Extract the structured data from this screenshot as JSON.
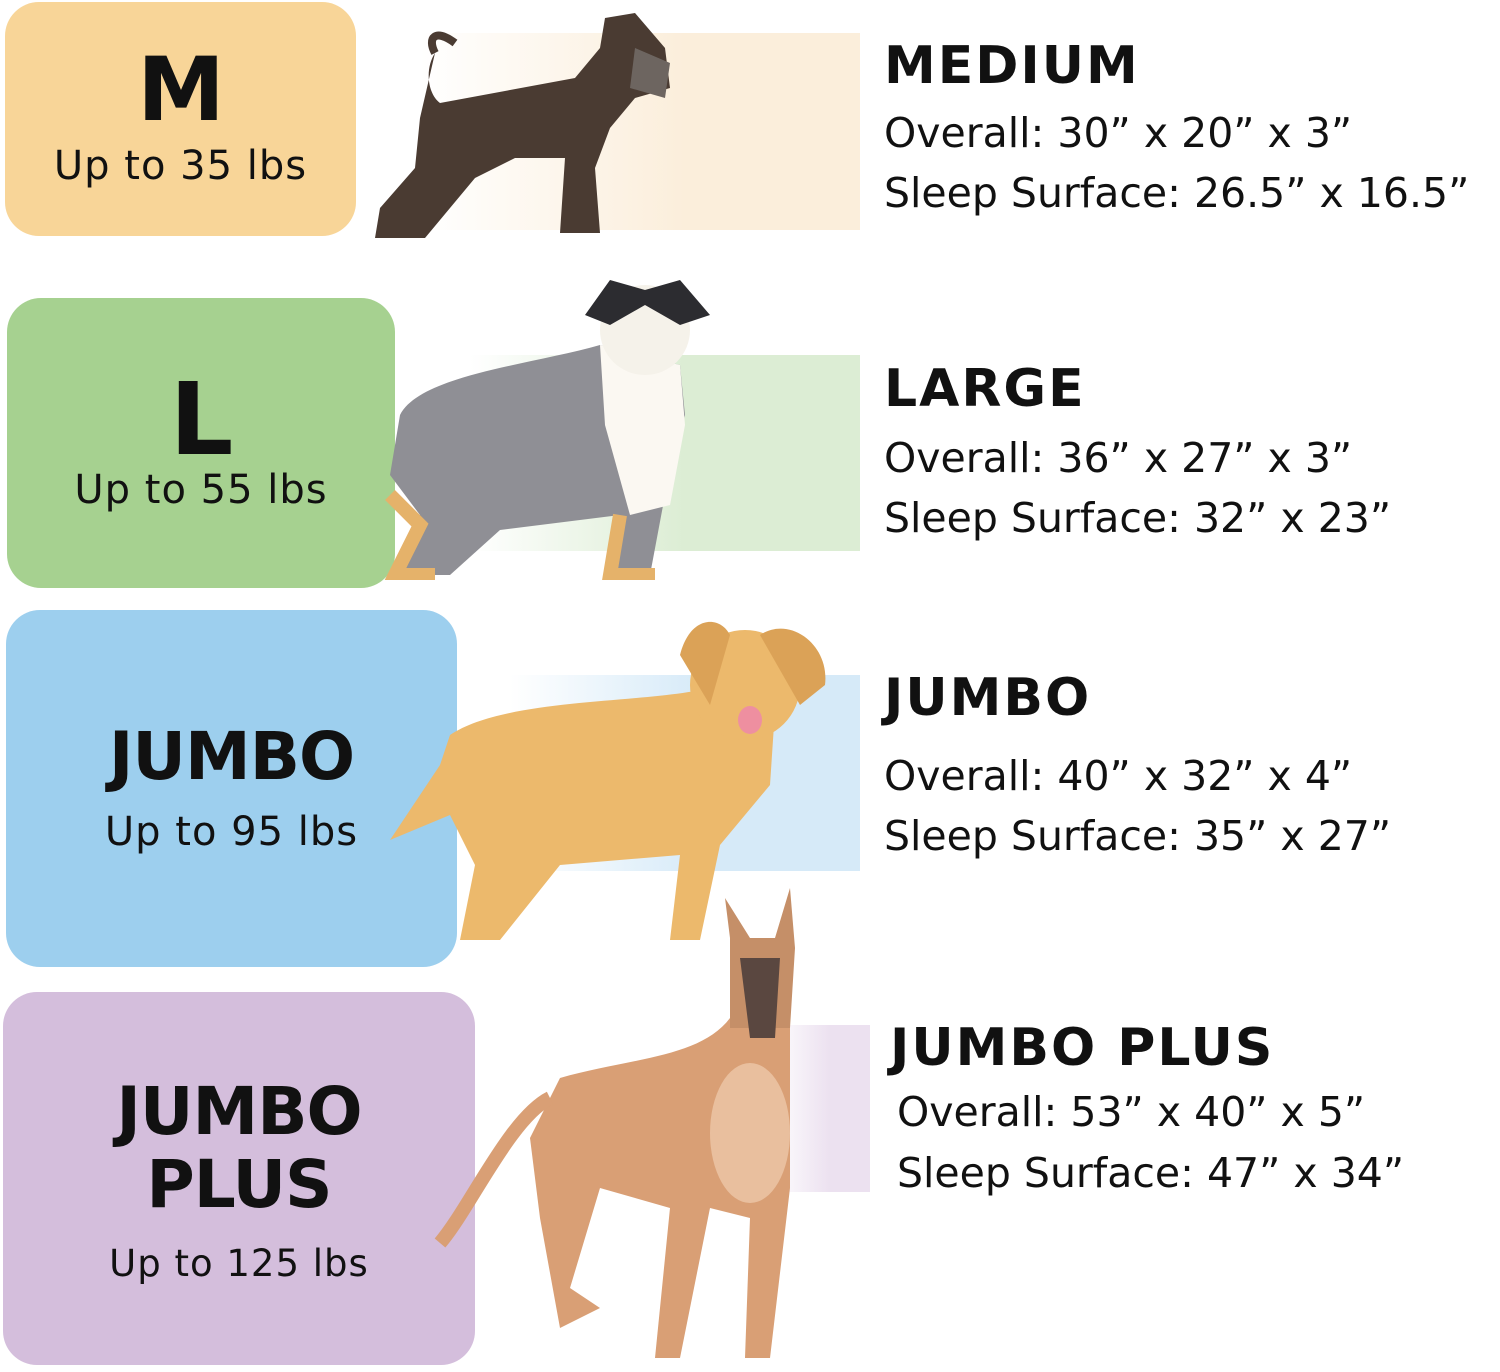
{
  "colors": {
    "medium": "#f8d598",
    "large": "#a6d190",
    "jumbo": "#9dcfee",
    "jumbo_plus": "#d4bedc",
    "medium_band": "#fbeedb",
    "large_band": "#dcedd4",
    "jumbo_band": "#d6eaf8",
    "jumbo_plus_band": "#ece1f0"
  },
  "sizes": [
    {
      "badge": "M",
      "weight": "Up to 35 lbs",
      "name": "MEDIUM",
      "overall": "Overall: 30” x 20” x 3”",
      "sleep": "Sleep Surface: 26.5” x 16.5”",
      "dog_icon": "schnauzer-icon"
    },
    {
      "badge": "L",
      "weight": "Up to 55 lbs",
      "name": "LARGE",
      "overall": "Overall: 36” x 27” x 3”",
      "sleep": "Sleep Surface: 32” x 23”",
      "dog_icon": "australian-shepherd-icon"
    },
    {
      "badge": "JUMBO",
      "weight": "Up to 95 lbs",
      "name": "JUMBO",
      "overall": "Overall: 40” x 32” x 4”",
      "sleep": "Sleep Surface: 35” x 27”",
      "dog_icon": "golden-retriever-icon"
    },
    {
      "badge_line1": "JUMBO",
      "badge_line2": "PLUS",
      "weight": "Up to 125 lbs",
      "name": "JUMBO PLUS",
      "overall": "Overall: 53” x 40” x 5”",
      "sleep": "Sleep Surface: 47” x 34”",
      "dog_icon": "great-dane-icon"
    }
  ]
}
